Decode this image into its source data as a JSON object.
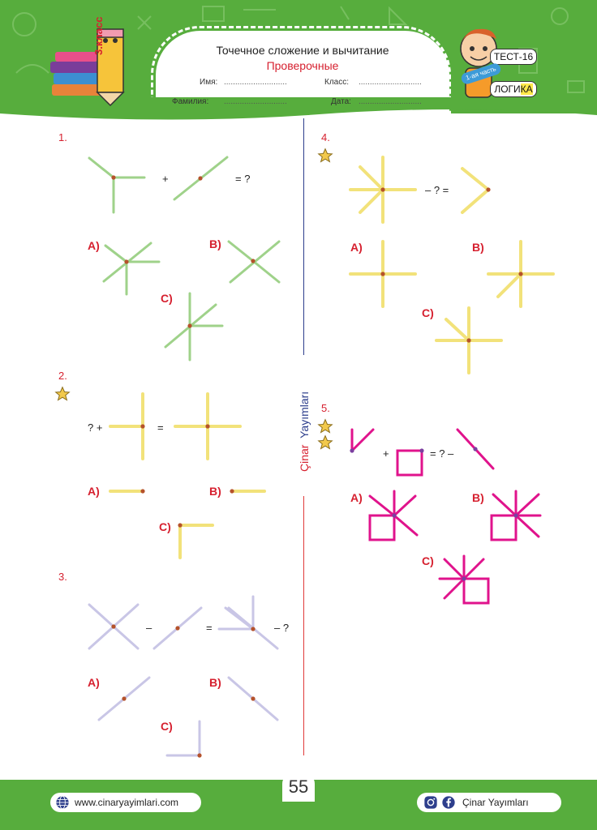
{
  "header": {
    "title": "Точечное сложение и вычитание",
    "subtitle": "Проверочные",
    "grade": "3.класс",
    "test": "ТЕСТ-16",
    "part": "1-ая часть",
    "logic_a": "ЛОГИ",
    "logic_b": "КА",
    "name_label": "Имя:",
    "class_label": "Класс:",
    "surname_label": "Фамилия:",
    "date_label": "Дата:",
    "dots": "............................"
  },
  "questions": {
    "q1": {
      "num": "1.",
      "plus": "+",
      "eq": "= ?",
      "a": "A)",
      "b": "B)",
      "c": "C)"
    },
    "q2": {
      "num": "2.",
      "lead": "? +",
      "eq": "=",
      "a": "A)",
      "b": "B)",
      "c": "C)"
    },
    "q3": {
      "num": "3.",
      "minus": "–",
      "eq": "=",
      "tail": "– ?",
      "a": "A)",
      "b": "B)",
      "c": "C)"
    },
    "q4": {
      "num": "4.",
      "eq": "– ? =",
      "a": "A)",
      "b": "B)",
      "c": "C)"
    },
    "q5": {
      "num": "5.",
      "plus": "+",
      "eq": "= ? –",
      "a": "A)",
      "b": "B)",
      "c": "C)"
    }
  },
  "brand": {
    "name_a": "Çinar",
    "name_b": "Yayımları"
  },
  "footer": {
    "website": "www.cinaryayimlari.com",
    "social": "Çinar Yayımları",
    "page": "55"
  },
  "colors": {
    "green": "#57ad3d",
    "red": "#d6202f",
    "navy": "#2d3e8c",
    "stick_green": "#9fd28a",
    "stick_yellow": "#f2e27a",
    "stick_lav": "#c9c6e6",
    "magenta": "#e0138c"
  }
}
